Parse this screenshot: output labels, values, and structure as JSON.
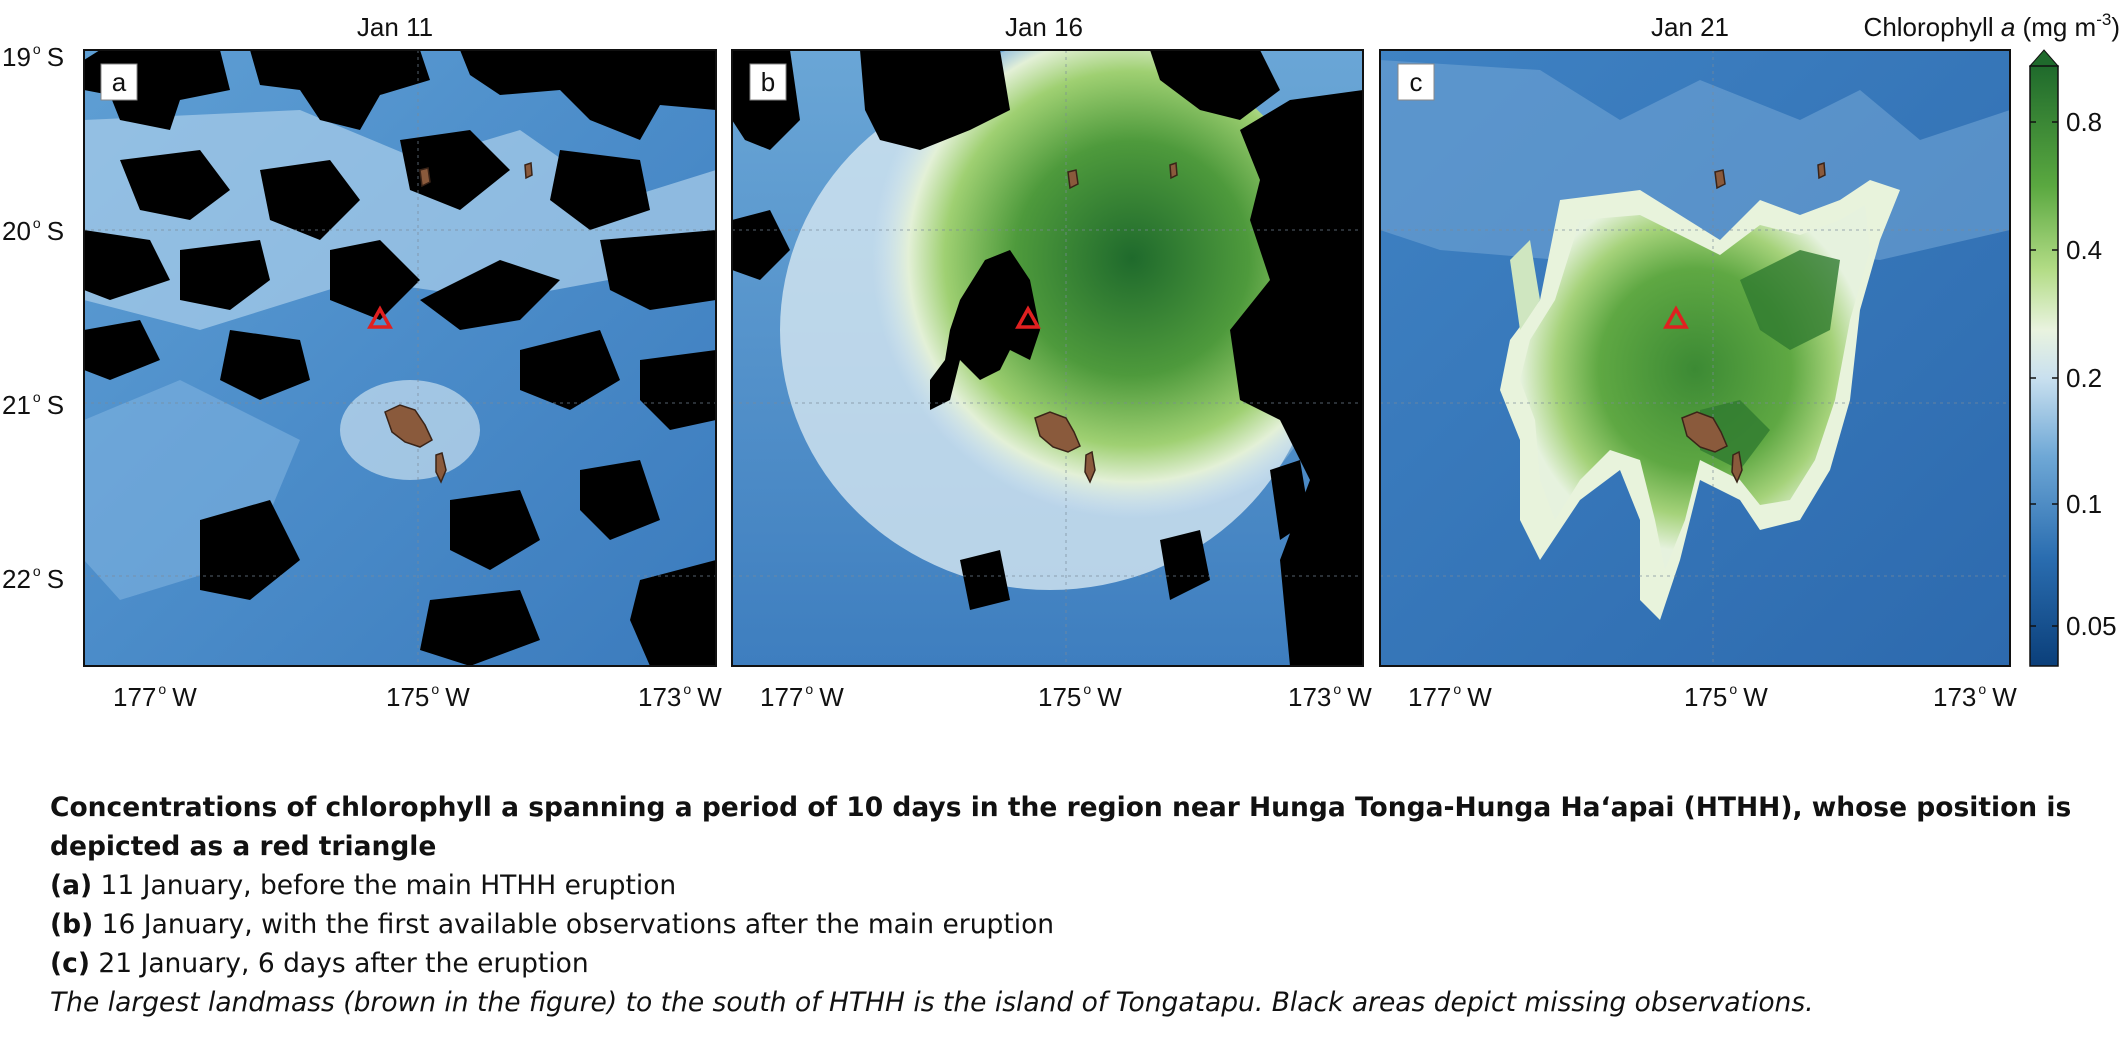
{
  "panels": [
    {
      "id": "a",
      "letter": "a",
      "title": "Jan 11",
      "scene": "before"
    },
    {
      "id": "b",
      "letter": "b",
      "title": "Jan 16",
      "scene": "bloom-early"
    },
    {
      "id": "c",
      "letter": "c",
      "title": "Jan 21",
      "scene": "bloom-late"
    }
  ],
  "lat_labels": [
    "19",
    "20",
    "21",
    "22"
  ],
  "lat_unit": "S",
  "lon_labels": [
    "177",
    "175",
    "173"
  ],
  "lon_unit": "W",
  "colorbar": {
    "title_main": "Chlorophyll ",
    "title_var": "a",
    "title_unit_open": " (mg m",
    "title_unit_exp": "-3",
    "title_unit_close": ")",
    "ticks": [
      "0.8",
      "0.4",
      "0.2",
      "0.1",
      "0.05"
    ],
    "colors": {
      "low": "#0b3f7a",
      "mid_blue": "#3f86c4",
      "light": "#e6f2e6",
      "green": "#7cc146",
      "dark_green": "#1e6b2e"
    }
  },
  "marker": {
    "type": "triangle",
    "color": "#e02020"
  },
  "land_color": "#8a5a3c",
  "missing_color": "#000000",
  "caption": {
    "heading": "Concentrations of chlorophyll a spanning a period of 10 days in the region near Hunga Tonga-Hunga Ha‘apai (HTHH), whose position is depicted as a red triangle",
    "items": [
      {
        "tag": "(a)",
        "text": " 11 January, before the main HTHH eruption"
      },
      {
        "tag": "(b)",
        "text": " 16 January, with the first available observations after the main eruption"
      },
      {
        "tag": "(c)",
        "text": " 21 January, 6 days after the eruption"
      }
    ],
    "note": "The largest landmass (brown in the figure) to the south of HTHH is the island of Tongatapu. Black areas depict missing observations."
  }
}
